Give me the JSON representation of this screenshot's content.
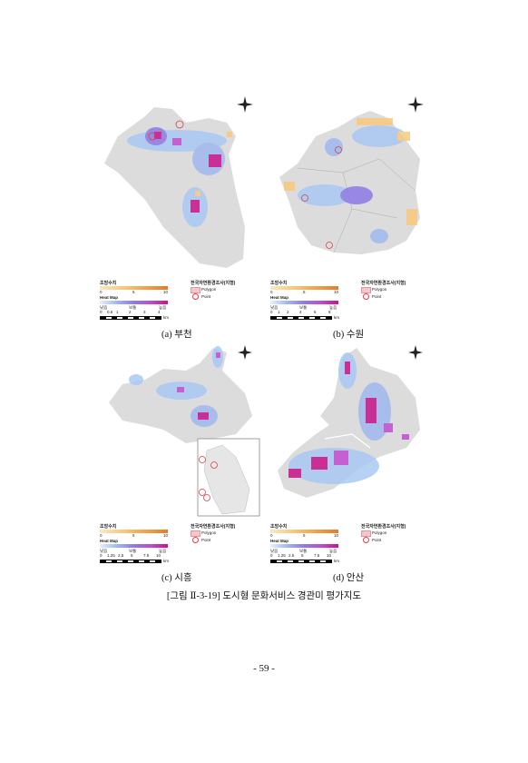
{
  "panels": [
    {
      "id": "a",
      "caption": "(a) 부천"
    },
    {
      "id": "b",
      "caption": "(b) 수원"
    },
    {
      "id": "c",
      "caption": "(c) 시흥"
    },
    {
      "id": "d",
      "caption": "(d) 안산"
    }
  ],
  "legend": {
    "landscape_title": "조망수치",
    "survey_title": "전국자연환경조사(지형)",
    "heatmap_label": "Heat Map",
    "scale_low": "0",
    "scale_mid": "5",
    "scale_high": "10",
    "heat_low": "낮음",
    "heat_mid": "보통",
    "heat_high": "높음",
    "polygon_label": "Polygon",
    "point_label": "Point",
    "scale_unit": "km",
    "scale_ticks_a": [
      "0",
      "0.5",
      "1",
      "2",
      "3",
      "4"
    ],
    "scale_ticks_b": [
      "0",
      "1",
      "2",
      "4",
      "6",
      "8"
    ],
    "scale_ticks_cd": [
      "0",
      "1.25",
      "2.5",
      "5",
      "7.5",
      "10"
    ]
  },
  "figure_caption": "[그림 Ⅱ-3-19] 도시형 문화서비스 경관미 평가지도",
  "page_number": "- 59 -",
  "colors": {
    "land": "#dcdcdc",
    "heat_low": "#9fc4f0",
    "heat_high": "#c8128a",
    "accent_orange": "#f2a24b",
    "point": "#d8404a"
  }
}
